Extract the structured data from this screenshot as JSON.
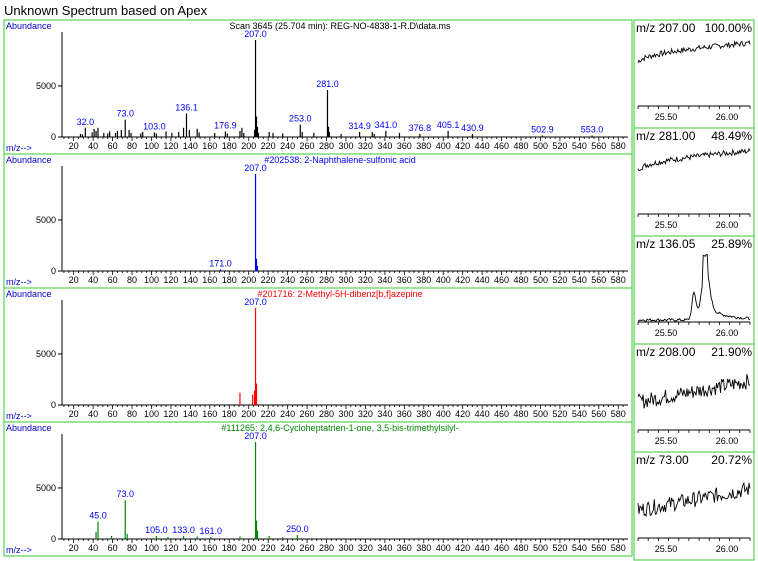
{
  "title": "Unknown Spectrum based on Apex",
  "colors": {
    "panel_border": "#33cc33",
    "axis": "#000000",
    "label_blue": "#0000ff",
    "header_blue": "#0000cc",
    "ref1": "#0000ff",
    "ref2": "#ff0000",
    "ref3": "#008800",
    "sample": "#000000"
  },
  "common": {
    "abundance_label": "Abundance",
    "mz_label": "m/z-->",
    "y_ticks": [
      0,
      5000
    ],
    "x_ticks": [
      20,
      40,
      60,
      80,
      100,
      120,
      140,
      160,
      180,
      200,
      220,
      240,
      260,
      280,
      300,
      320,
      340,
      360,
      380,
      400,
      420,
      440,
      460,
      480,
      500,
      520,
      540,
      560,
      580
    ],
    "x_range": [
      8,
      590
    ],
    "y_range": [
      0,
      9500
    ]
  },
  "chart_data": [
    {
      "type": "bar",
      "name": "sample",
      "header": "Scan 3645 (25.704 min): REG-NO-4838-1-R.D\\data.ms",
      "xlabel": "m/z-->",
      "ylabel": "Abundance",
      "color": "#000000",
      "peaks": [
        [
          27,
          300
        ],
        [
          29,
          250
        ],
        [
          32,
          900
        ],
        [
          39,
          450
        ],
        [
          41,
          800
        ],
        [
          43,
          600
        ],
        [
          45,
          900
        ],
        [
          51,
          400
        ],
        [
          55,
          350
        ],
        [
          57,
          550
        ],
        [
          63,
          400
        ],
        [
          65,
          600
        ],
        [
          69,
          700
        ],
        [
          73,
          1700
        ],
        [
          77,
          700
        ],
        [
          79,
          400
        ],
        [
          89,
          350
        ],
        [
          91,
          500
        ],
        [
          103,
          450
        ],
        [
          105,
          350
        ],
        [
          115,
          550
        ],
        [
          121,
          400
        ],
        [
          128,
          500
        ],
        [
          133,
          900
        ],
        [
          136,
          2300
        ],
        [
          139,
          700
        ],
        [
          147,
          800
        ],
        [
          149,
          450
        ],
        [
          165,
          400
        ],
        [
          176,
          550
        ],
        [
          178,
          350
        ],
        [
          191,
          600
        ],
        [
          193,
          900
        ],
        [
          195,
          400
        ],
        [
          206,
          700
        ],
        [
          207,
          9500
        ],
        [
          208,
          2000
        ],
        [
          209,
          1000
        ],
        [
          210,
          400
        ],
        [
          221,
          500
        ],
        [
          225,
          400
        ],
        [
          235,
          350
        ],
        [
          253,
          1200
        ],
        [
          255,
          500
        ],
        [
          267,
          400
        ],
        [
          281,
          4600
        ],
        [
          282,
          1000
        ],
        [
          283,
          500
        ],
        [
          295,
          300
        ],
        [
          314,
          500
        ],
        [
          327,
          500
        ],
        [
          329,
          300
        ],
        [
          341,
          600
        ],
        [
          355,
          400
        ],
        [
          376,
          300
        ],
        [
          405,
          600
        ],
        [
          430,
          300
        ],
        [
          502,
          150
        ],
        [
          553,
          150
        ]
      ],
      "labels": [
        [
          "32.0",
          32,
          900
        ],
        [
          "73.0",
          73,
          1700
        ],
        [
          "103.0",
          103,
          450
        ],
        [
          "136.1",
          136,
          2300
        ],
        [
          "176.9",
          176,
          550
        ],
        [
          "207.0",
          207,
          9500
        ],
        [
          "253.0",
          253,
          1200
        ],
        [
          "281.0",
          281,
          4600
        ],
        [
          "314.9",
          314,
          500
        ],
        [
          "341.0",
          341,
          600
        ],
        [
          "376.8",
          376,
          300
        ],
        [
          "405.1",
          405,
          600
        ],
        [
          "430.9",
          430,
          300
        ],
        [
          "502.9",
          502,
          150
        ],
        [
          "553.0",
          553,
          150
        ]
      ]
    },
    {
      "type": "bar",
      "name": "reference-1",
      "header": "#202538: 2-Naphthalene-sulfonic acid",
      "xlabel": "m/z-->",
      "ylabel": "Abundance",
      "color": "#0000ff",
      "peaks": [
        [
          171,
          150
        ],
        [
          207,
          9500
        ],
        [
          208,
          1200
        ],
        [
          209,
          500
        ]
      ],
      "labels": [
        [
          "171.0",
          171,
          150
        ],
        [
          "207.0",
          207,
          9500
        ]
      ]
    },
    {
      "type": "bar",
      "name": "reference-2",
      "header": "#201716: 2-Methyl-5H-dibenz[b,f]azepine",
      "xlabel": "m/z-->",
      "ylabel": "Abundance",
      "color": "#ff0000",
      "peaks": [
        [
          191,
          1200
        ],
        [
          204,
          1000
        ],
        [
          206,
          1400
        ],
        [
          207,
          9500
        ],
        [
          208,
          2100
        ]
      ],
      "labels": [
        [
          "207.0",
          207,
          9500
        ]
      ]
    },
    {
      "type": "bar",
      "name": "reference-3",
      "header": "#111265: 2,4,6-Cycloheptatrien-1-one, 3,5-bis-trimethylsilyl-",
      "xlabel": "m/z-->",
      "ylabel": "Abundance",
      "color": "#008800",
      "peaks": [
        [
          43,
          700
        ],
        [
          45,
          1700
        ],
        [
          59,
          300
        ],
        [
          73,
          3800
        ],
        [
          75,
          500
        ],
        [
          105,
          300
        ],
        [
          117,
          200
        ],
        [
          133,
          300
        ],
        [
          147,
          250
        ],
        [
          161,
          200
        ],
        [
          191,
          250
        ],
        [
          207,
          9500
        ],
        [
          208,
          1800
        ],
        [
          209,
          800
        ],
        [
          221,
          300
        ],
        [
          235,
          200
        ],
        [
          250,
          400
        ]
      ],
      "labels": [
        [
          "45.0",
          45,
          1700
        ],
        [
          "73.0",
          73,
          3800
        ],
        [
          "105.0",
          105,
          300
        ],
        [
          "133.0",
          133,
          300
        ],
        [
          "161.0",
          161,
          200
        ],
        [
          "207.0",
          207,
          9500
        ],
        [
          "250.0",
          250,
          400
        ]
      ]
    },
    {
      "type": "line",
      "name": "eic-207",
      "label_mz": "m/z 207.00",
      "label_pct": "100.00%",
      "x_ticks": [
        "25.50",
        "26.00"
      ],
      "shape": "ramp"
    },
    {
      "type": "line",
      "name": "eic-281",
      "label_mz": "m/z 281.00",
      "label_pct": "48.49%",
      "x_ticks": [
        "25.50",
        "26.00"
      ],
      "shape": "ramp"
    },
    {
      "type": "line",
      "name": "eic-136",
      "label_mz": "m/z 136.05",
      "label_pct": "25.89%",
      "x_ticks": [
        "25.50",
        "26.00"
      ],
      "shape": "peak"
    },
    {
      "type": "line",
      "name": "eic-208",
      "label_mz": "m/z 208.00",
      "label_pct": "21.90%",
      "x_ticks": [
        "25.50",
        "26.00"
      ],
      "shape": "noisy"
    },
    {
      "type": "line",
      "name": "eic-73",
      "label_mz": "m/z  73.00",
      "label_pct": "20.72%",
      "x_ticks": [
        "25.50",
        "26.00"
      ],
      "shape": "noisy"
    }
  ]
}
